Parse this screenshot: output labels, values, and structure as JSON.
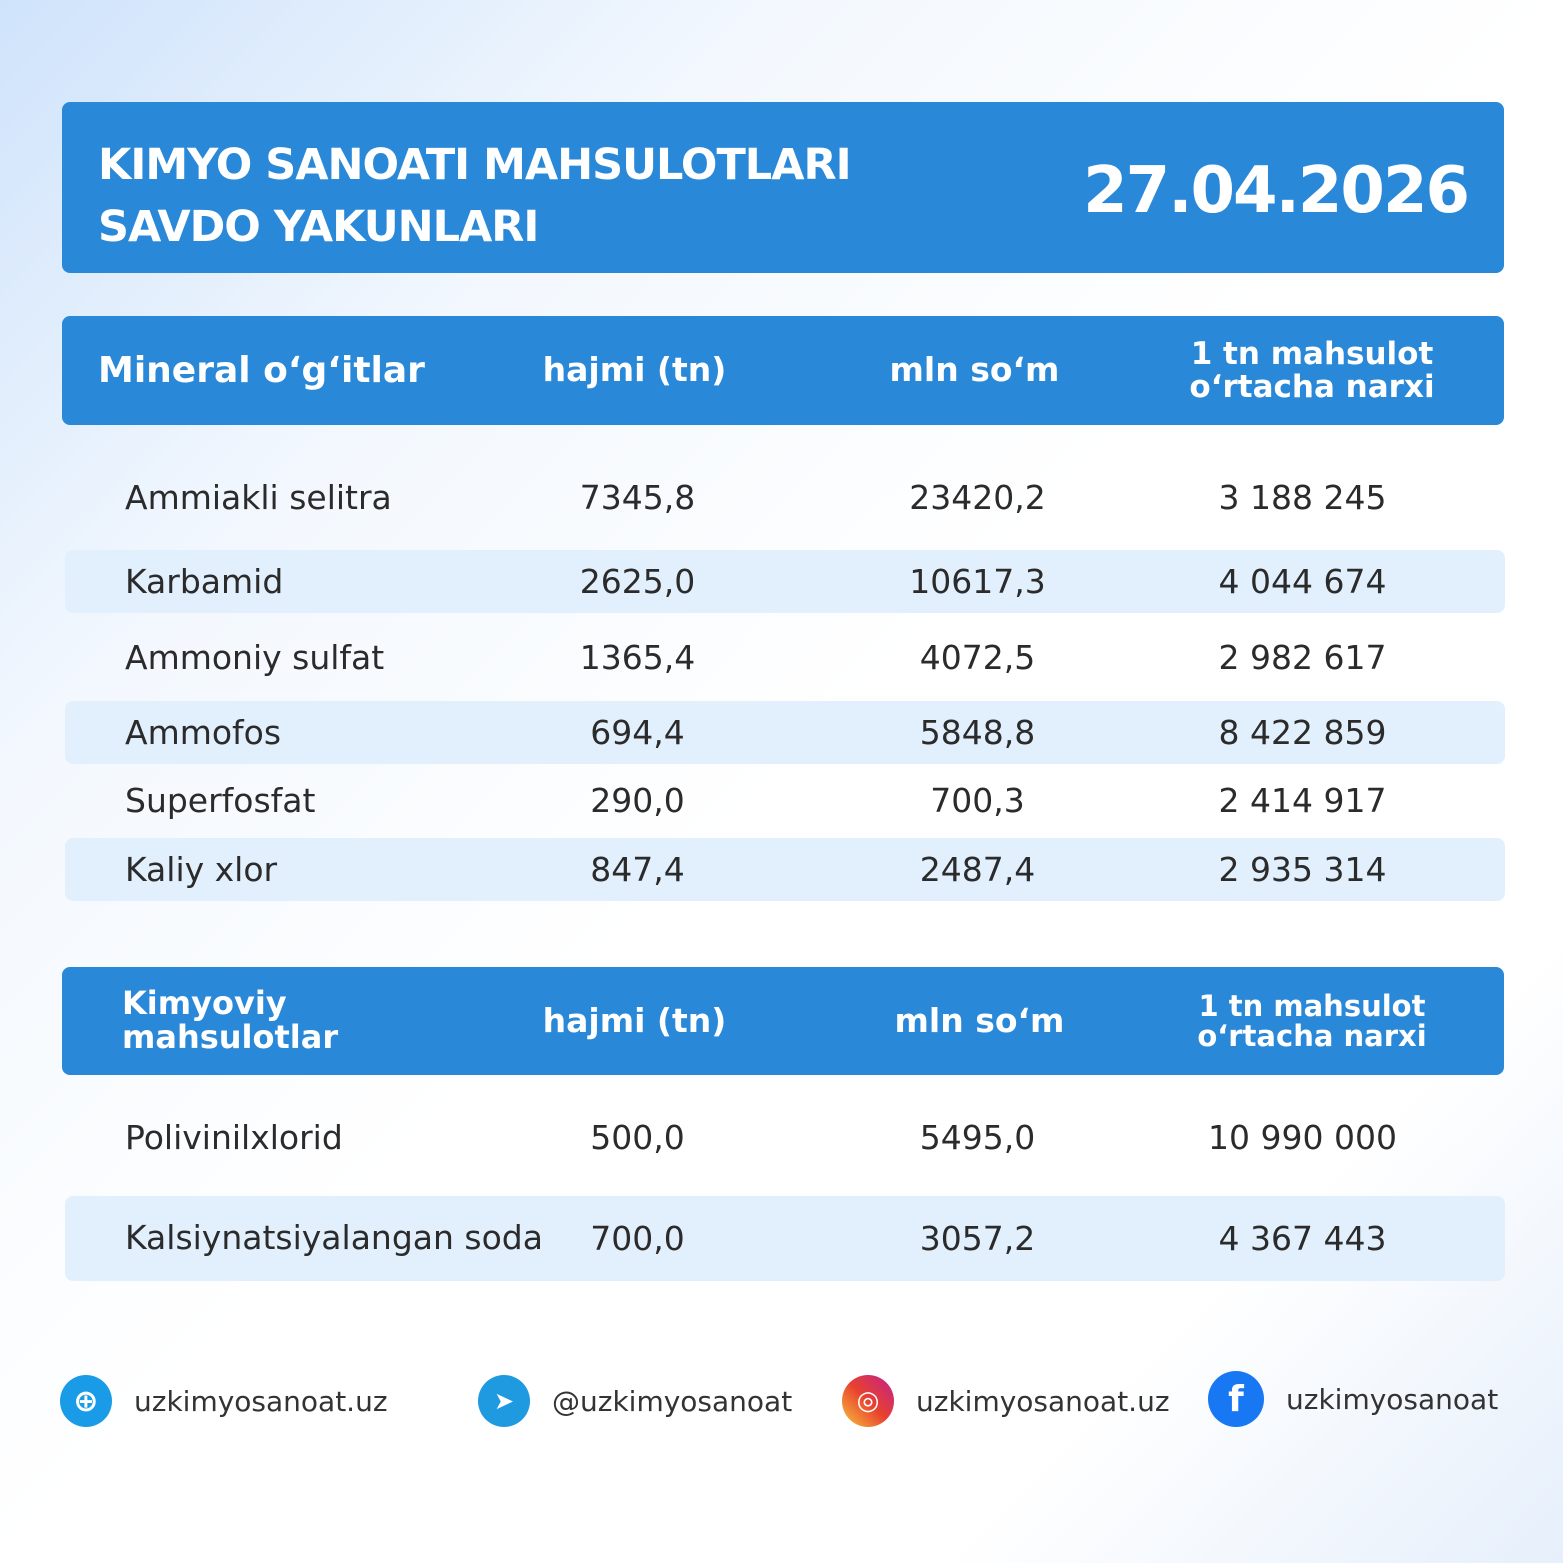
{
  "header": {
    "title_line1": "KIMYO SANOATI MAHSULOTLARI",
    "title_line2": "SAVDO YAKUNLARI",
    "date": "27.04.2026"
  },
  "table1": {
    "headers": [
      "Mineral o‘g‘itlar",
      "hajmi (tn)",
      "mln so‘m",
      "1 tn mahsulot o‘rtacha narxi"
    ],
    "rows": [
      [
        "Ammiakli selitra",
        "7345,8",
        "23420,2",
        "3 188 245"
      ],
      [
        "Karbamid",
        "2625,0",
        "10617,3",
        "4 044 674"
      ],
      [
        "Ammoniy sulfat",
        "1365,4",
        "4072,5",
        "2 982 617"
      ],
      [
        "Ammofos",
        "694,4",
        "5848,8",
        "8 422 859"
      ],
      [
        "Superfosfat",
        "290,0",
        "700,3",
        "2 414 917"
      ],
      [
        "Kaliy xlor",
        "847,4",
        "2487,4",
        "2 935 314"
      ]
    ]
  },
  "table2": {
    "headers": [
      "Kimyoviy mahsulotlar",
      "hajmi (tn)",
      "mln so‘m",
      "1 tn mahsulot o‘rtacha narxi"
    ],
    "rows": [
      [
        "Polivinilxlorid",
        "500,0",
        "5495,0",
        "10 990 000"
      ],
      [
        "Kalsiynatsiyalangan soda",
        "700,0",
        "3057,2",
        "4 367 443"
      ]
    ]
  },
  "footer": {
    "links": [
      {
        "icon": "globe-icon",
        "label": "uzkimyosanoat.uz",
        "color": "#1a9be8"
      },
      {
        "icon": "telegram-icon",
        "label": "@uzkimyosanoat",
        "color": "#1f9ae0"
      },
      {
        "icon": "instagram-icon",
        "label": "uzkimyosanoat.uz",
        "color": "#d62a7a"
      },
      {
        "icon": "facebook-icon",
        "label": "uzkimyosanoat",
        "color": "#1877f2"
      }
    ]
  }
}
